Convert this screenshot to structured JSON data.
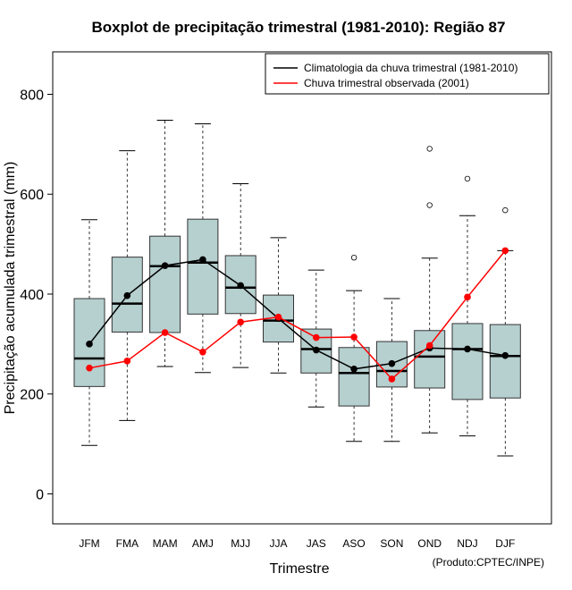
{
  "chart_data": {
    "type": "boxplot",
    "title": "Boxplot de precipitação trimestral (1981-2010): Região 87",
    "xlabel": "Trimestre",
    "ylabel": "Precipitação acumulada trimestral (mm)",
    "credit": "(Produto:CPTEC/INPE)",
    "ylim": [
      -60,
      885
    ],
    "yticks": [
      "0",
      "200",
      "400",
      "600",
      "800"
    ],
    "ytick_values": [
      0,
      200,
      400,
      600,
      800
    ],
    "categories": [
      "JFM",
      "FMA",
      "MAM",
      "AMJ",
      "MJJ",
      "JJA",
      "JAS",
      "ASO",
      "SON",
      "OND",
      "NDJ",
      "DJF"
    ],
    "boxes": [
      {
        "min": 97,
        "q1": 215,
        "median": 271,
        "q3": 391,
        "max": 549,
        "outliers": []
      },
      {
        "min": 147,
        "q1": 324,
        "median": 381,
        "q3": 474,
        "max": 687,
        "outliers": []
      },
      {
        "min": 255,
        "q1": 323,
        "median": 456,
        "q3": 516,
        "max": 748,
        "outliers": []
      },
      {
        "min": 243,
        "q1": 360,
        "median": 463,
        "q3": 550,
        "max": 741,
        "outliers": []
      },
      {
        "min": 253,
        "q1": 361,
        "median": 413,
        "q3": 477,
        "max": 621,
        "outliers": []
      },
      {
        "min": 242,
        "q1": 304,
        "median": 347,
        "q3": 398,
        "max": 513,
        "outliers": []
      },
      {
        "min": 174,
        "q1": 242,
        "median": 290,
        "q3": 330,
        "max": 448,
        "outliers": []
      },
      {
        "min": 105,
        "q1": 176,
        "median": 242,
        "q3": 293,
        "max": 407,
        "outliers": [
          473
        ]
      },
      {
        "min": 105,
        "q1": 214,
        "median": 246,
        "q3": 305,
        "max": 391,
        "outliers": []
      },
      {
        "min": 122,
        "q1": 212,
        "median": 275,
        "q3": 327,
        "max": 472,
        "outliers": [
          578,
          691
        ]
      },
      {
        "min": 116,
        "q1": 189,
        "median": 290,
        "q3": 341,
        "max": 557,
        "outliers": [
          631
        ]
      },
      {
        "min": 76,
        "q1": 192,
        "median": 276,
        "q3": 339,
        "max": 487,
        "outliers": [
          568
        ]
      }
    ],
    "series": [
      {
        "name": "Climatologia da chuva trimestral (1981-2010)",
        "color": "#000000",
        "values": [
          300,
          397,
          457,
          469,
          417,
          351,
          288,
          250,
          261,
          292,
          290,
          277
        ]
      },
      {
        "name": "Chuva trimestral observada (2001)",
        "color": "#ff0000",
        "values": [
          252,
          266,
          323,
          284,
          344,
          354,
          313,
          314,
          230,
          297,
          394,
          487
        ]
      }
    ],
    "box_fill": "#b6cfcf",
    "legend_position": "top-right"
  }
}
